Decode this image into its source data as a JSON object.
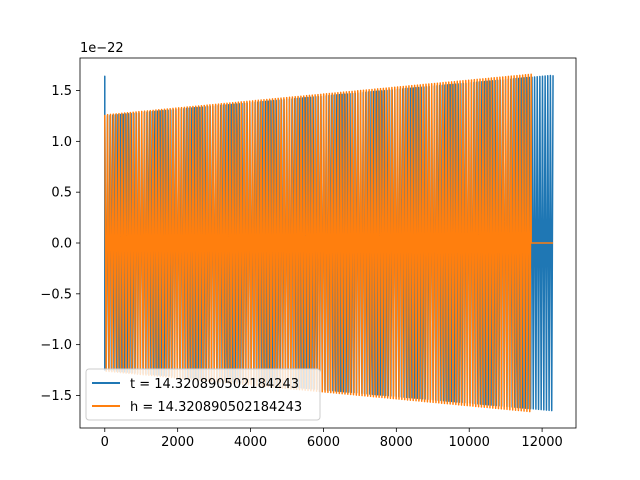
{
  "chart_data": {
    "type": "line",
    "title": "",
    "xlabel": "",
    "ylabel": "",
    "y_offset_label": "1e−22",
    "xlim": [
      -680,
      12930
    ],
    "ylim": [
      -1.82,
      1.82
    ],
    "xticks": [
      0,
      2000,
      4000,
      6000,
      8000,
      10000,
      12000
    ],
    "xtick_labels": [
      "0",
      "2000",
      "4000",
      "6000",
      "8000",
      "10000",
      "12000"
    ],
    "yticks": [
      -1.5,
      -1.0,
      -0.5,
      0.0,
      0.5,
      1.0,
      1.5
    ],
    "ytick_labels": [
      "−1.5",
      "−1.0",
      "−0.5",
      "0.0",
      "0.5",
      "1.0",
      "1.5"
    ],
    "grid": false,
    "legend_position": "lower-left",
    "series": [
      {
        "name": "t = 14.320890502184243",
        "color": "#1f77b4",
        "x_start": 0,
        "x_end": 12300,
        "envelope_start": 1.25,
        "envelope_end": 1.65,
        "initial_spike": 1.64,
        "cycles": 170
      },
      {
        "name": "h = 14.320890502184243",
        "color": "#ff7f0e",
        "x_start": 0,
        "x_end": 11700,
        "envelope_start": 1.26,
        "envelope_end": 1.66,
        "tail_x_end": 12300,
        "tail_value": 0.0,
        "cycles": 150
      }
    ]
  }
}
